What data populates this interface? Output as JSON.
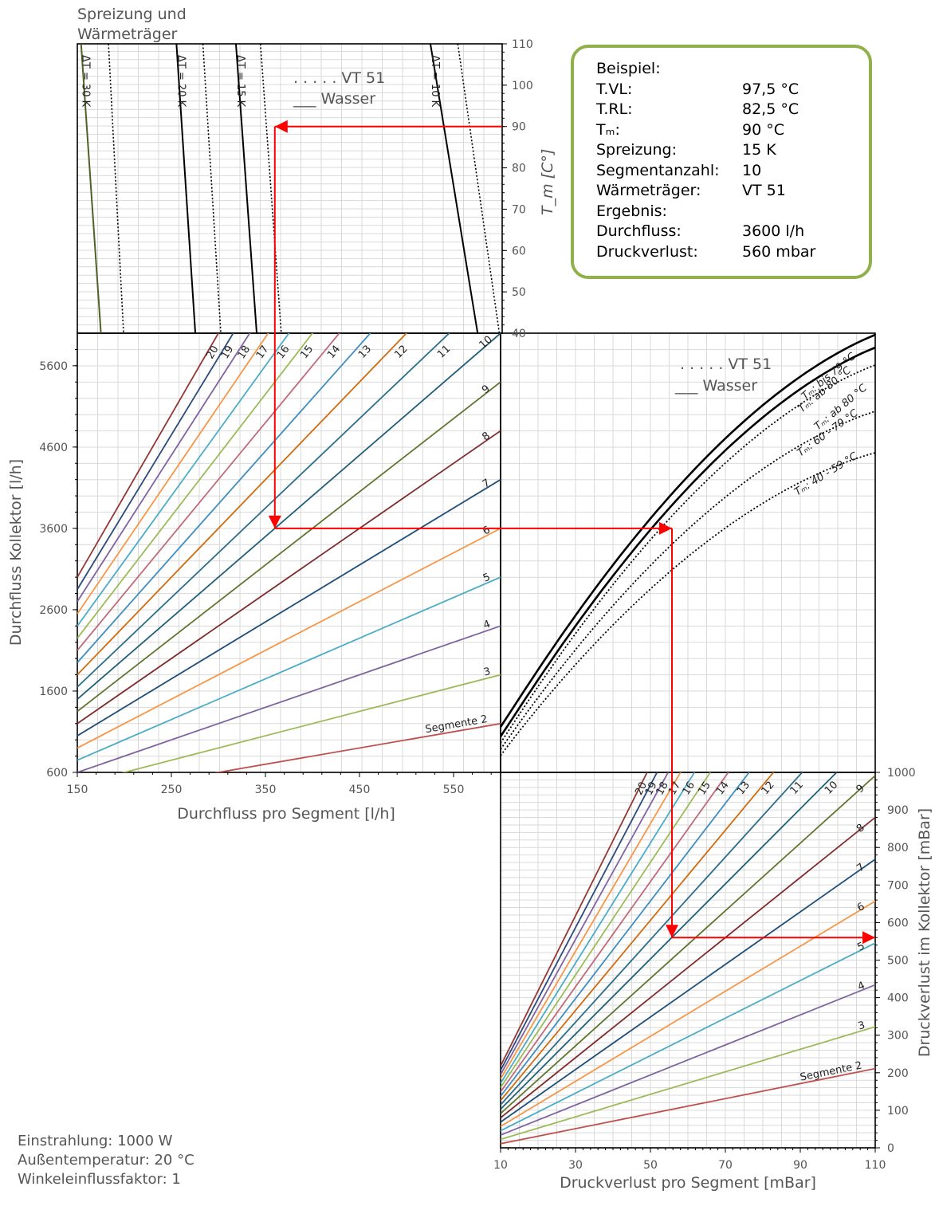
{
  "example": {
    "heading": "Beispiel:",
    "rows": [
      {
        "k": "T.VL:",
        "v": "97,5 °C"
      },
      {
        "k": "T.RL:",
        "v": "82,5 °C"
      },
      {
        "k": "Tₘ:",
        "v": "90 °C"
      },
      {
        "k": "Spreizung:",
        "v": "15 K"
      },
      {
        "k": "Segmentanzahl:",
        "v": "10"
      },
      {
        "k": "Wärmeträger:",
        "v": "VT 51"
      }
    ],
    "result_heading": "Ergebnis:",
    "results": [
      {
        "k": "Durchfluss:",
        "v": "3600 l/h"
      },
      {
        "k": "Druckverlust:",
        "v": "560 mbar"
      }
    ]
  },
  "conditions": [
    "Einstrahlung: 1000 W",
    "Außentemperatur:  20 °C",
    "Winkeleinflussfaktor: 1"
  ],
  "colors": {
    "seg2": "#c0504d",
    "seg3": "#9bbb59",
    "seg4": "#8064a2",
    "seg5": "#4bacc6",
    "seg6": "#f79646",
    "seg7": "#1f4e79",
    "seg8": "#7f2b2b",
    "seg9": "#5f7530",
    "seg10": "#215e78",
    "seg11": "#2c6e8a",
    "seg12": "#d06b0e",
    "seg13": "#3e8ec0",
    "seg14": "#bf6a7a",
    "seg15": "#9bbb59",
    "seg16": "#4bacc6",
    "seg17": "#f79646",
    "seg18": "#8064a2",
    "seg19": "#2a4b7c",
    "seg20": "#943634",
    "guide": "#ff0000",
    "box": "#8fb04a"
  },
  "chart_data": [
    {
      "type": "line",
      "id": "spreizung",
      "title": "Spreizung und Wärmeträger",
      "ylabel": "T_m [C°]",
      "ylim": [
        40,
        110
      ],
      "yticks": [
        40,
        50,
        60,
        70,
        80,
        90,
        100,
        110
      ],
      "legend": [
        ". . . . . VT 51",
        "___ Wasser"
      ],
      "series": [
        {
          "name": "ΔT = 30 K",
          "style": "solid",
          "color": "#4f6228",
          "x": [
            154,
            175
          ],
          "y": [
            110,
            40
          ]
        },
        {
          "name": "",
          "style": "dotted",
          "x": [
            183,
            199
          ],
          "y": [
            110,
            40
          ]
        },
        {
          "name": "ΔT = 20 K",
          "style": "solid",
          "x": [
            255,
            275
          ],
          "y": [
            110,
            40
          ]
        },
        {
          "name": "",
          "style": "dotted",
          "x": [
            283,
            302
          ],
          "y": [
            110,
            40
          ]
        },
        {
          "name": "ΔT = 15 K",
          "style": "solid",
          "x": [
            318,
            340
          ],
          "y": [
            110,
            40
          ]
        },
        {
          "name": "",
          "style": "dotted",
          "x": [
            344,
            366
          ],
          "y": [
            110,
            40
          ]
        },
        {
          "name": "ΔT = 10 K",
          "style": "solid",
          "x": [
            524,
            574
          ],
          "y": [
            110,
            40
          ]
        },
        {
          "name": "",
          "style": "dotted",
          "x": [
            553,
            597
          ],
          "y": [
            110,
            40
          ]
        }
      ]
    },
    {
      "type": "line",
      "id": "durchfluss",
      "xlabel": "Durchfluss pro Segment [l/h]",
      "ylabel": "Durchfluss  Kollektor [l/h]",
      "xlim": [
        150,
        600
      ],
      "ylim": [
        600,
        6000
      ],
      "xticks": [
        150,
        250,
        350,
        450,
        550
      ],
      "yticks": [
        600,
        1600,
        2600,
        3600,
        4600,
        5600
      ],
      "series_label_prefix": "Segmente",
      "series": [
        {
          "name": "2",
          "n": 2
        },
        {
          "name": "3",
          "n": 3
        },
        {
          "name": "4",
          "n": 4
        },
        {
          "name": "5",
          "n": 5
        },
        {
          "name": "6",
          "n": 6
        },
        {
          "name": "7",
          "n": 7
        },
        {
          "name": "8",
          "n": 8
        },
        {
          "name": "9",
          "n": 9
        },
        {
          "name": "10",
          "n": 10
        },
        {
          "name": "11",
          "n": 11
        },
        {
          "name": "12",
          "n": 12
        },
        {
          "name": "13",
          "n": 13
        },
        {
          "name": "14",
          "n": 14
        },
        {
          "name": "15",
          "n": 15
        },
        {
          "name": "16",
          "n": 16
        },
        {
          "name": "17",
          "n": 17
        },
        {
          "name": "18",
          "n": 18
        },
        {
          "name": "19",
          "n": 19
        },
        {
          "name": "20",
          "n": 20
        }
      ]
    },
    {
      "type": "line",
      "id": "kennlinien",
      "legend": [
        ". . . . . VT 51",
        "___ Wasser"
      ],
      "series": [
        {
          "name": "Tₘ: ab 80 °C",
          "style": "solid"
        },
        {
          "name": "Tₘ: bis 79 °C",
          "style": "solid"
        },
        {
          "name": "Tₘ: ab 80 °C",
          "style": "dotted"
        },
        {
          "name": "Tₘ: 60 - 79 °C",
          "style": "dotted"
        },
        {
          "name": "Tₘ: 40 - 59 °C",
          "style": "dotted"
        }
      ]
    },
    {
      "type": "line",
      "id": "druckverlust",
      "xlabel": "Druckverlust pro Segment [mBar]",
      "ylabel": "Druckverlust im Kollektor [mBar]",
      "xlim": [
        10,
        110
      ],
      "ylim": [
        0,
        1000
      ],
      "xticks": [
        10,
        30,
        50,
        70,
        90,
        110
      ],
      "yticks": [
        0,
        100,
        200,
        300,
        400,
        500,
        600,
        700,
        800,
        900,
        1000
      ],
      "series_label_prefix": "Segmente",
      "series": [
        {
          "name": "2",
          "n": 2
        },
        {
          "name": "3",
          "n": 3
        },
        {
          "name": "4",
          "n": 4
        },
        {
          "name": "5",
          "n": 5
        },
        {
          "name": "6",
          "n": 6
        },
        {
          "name": "7",
          "n": 7
        },
        {
          "name": "8",
          "n": 8
        },
        {
          "name": "9",
          "n": 9
        },
        {
          "name": "10",
          "n": 10
        },
        {
          "name": "11",
          "n": 11
        },
        {
          "name": "12",
          "n": 12
        },
        {
          "name": "13",
          "n": 13
        },
        {
          "name": "14",
          "n": 14
        },
        {
          "name": "15",
          "n": 15
        },
        {
          "name": "16",
          "n": 16
        },
        {
          "name": "17",
          "n": 17
        },
        {
          "name": "18",
          "n": 18
        },
        {
          "name": "19",
          "n": 19
        },
        {
          "name": "20",
          "n": 20
        }
      ]
    }
  ]
}
